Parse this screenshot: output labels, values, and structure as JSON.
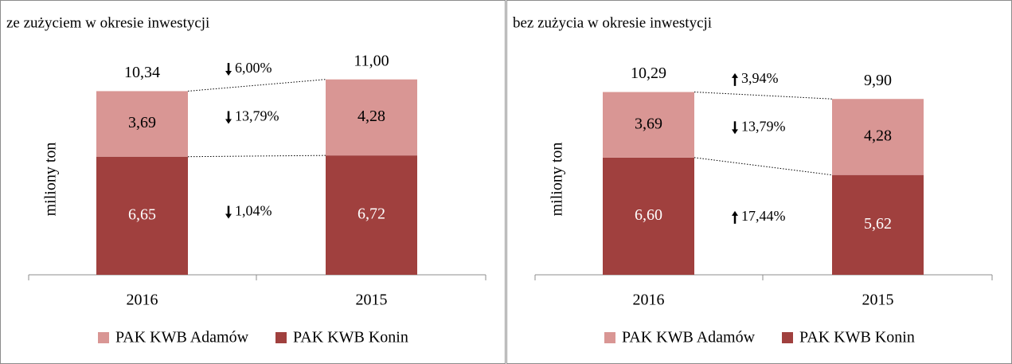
{
  "chart_data": [
    {
      "type": "stacked_bar",
      "title": "ze zużyciem w okresie inwestycji",
      "y_label": "miliony ton",
      "categories": [
        "2016",
        "2015"
      ],
      "series": [
        {
          "name": "PAK KWB Adamów",
          "color": "#d99694",
          "values": [
            3.69,
            4.28
          ],
          "value_labels": [
            "3,69",
            "4,28"
          ]
        },
        {
          "name": "PAK KWB Konin",
          "color": "#a0403e",
          "values": [
            6.65,
            6.72
          ],
          "value_labels": [
            "6,65",
            "6,72"
          ]
        }
      ],
      "totals": [
        10.34,
        11.0
      ],
      "total_labels": [
        "10,34",
        "11,00"
      ],
      "annotations": [
        {
          "text": "6,00%",
          "direction": "down"
        },
        {
          "text": "13,79%",
          "direction": "down"
        },
        {
          "text": "1,04%",
          "direction": "down"
        }
      ],
      "ylim": [
        0,
        12
      ],
      "legend": "bottom"
    },
    {
      "type": "stacked_bar",
      "title": "bez zużycia w okresie inwestycji",
      "y_label": "miliony ton",
      "categories": [
        "2016",
        "2015"
      ],
      "series": [
        {
          "name": "PAK KWB Adamów",
          "color": "#d99694",
          "values": [
            3.69,
            4.28
          ],
          "value_labels": [
            "3,69",
            "4,28"
          ]
        },
        {
          "name": "PAK KWB Konin",
          "color": "#a0403e",
          "values": [
            6.6,
            5.62
          ],
          "value_labels": [
            "6,60",
            "5,62"
          ]
        }
      ],
      "totals": [
        10.29,
        9.9
      ],
      "total_labels": [
        "10,29",
        "9,90"
      ],
      "annotations": [
        {
          "text": "3,94%",
          "direction": "up"
        },
        {
          "text": "13,79%",
          "direction": "down"
        },
        {
          "text": "17,44%",
          "direction": "up"
        }
      ],
      "ylim": [
        0,
        12
      ],
      "legend": "bottom"
    }
  ]
}
